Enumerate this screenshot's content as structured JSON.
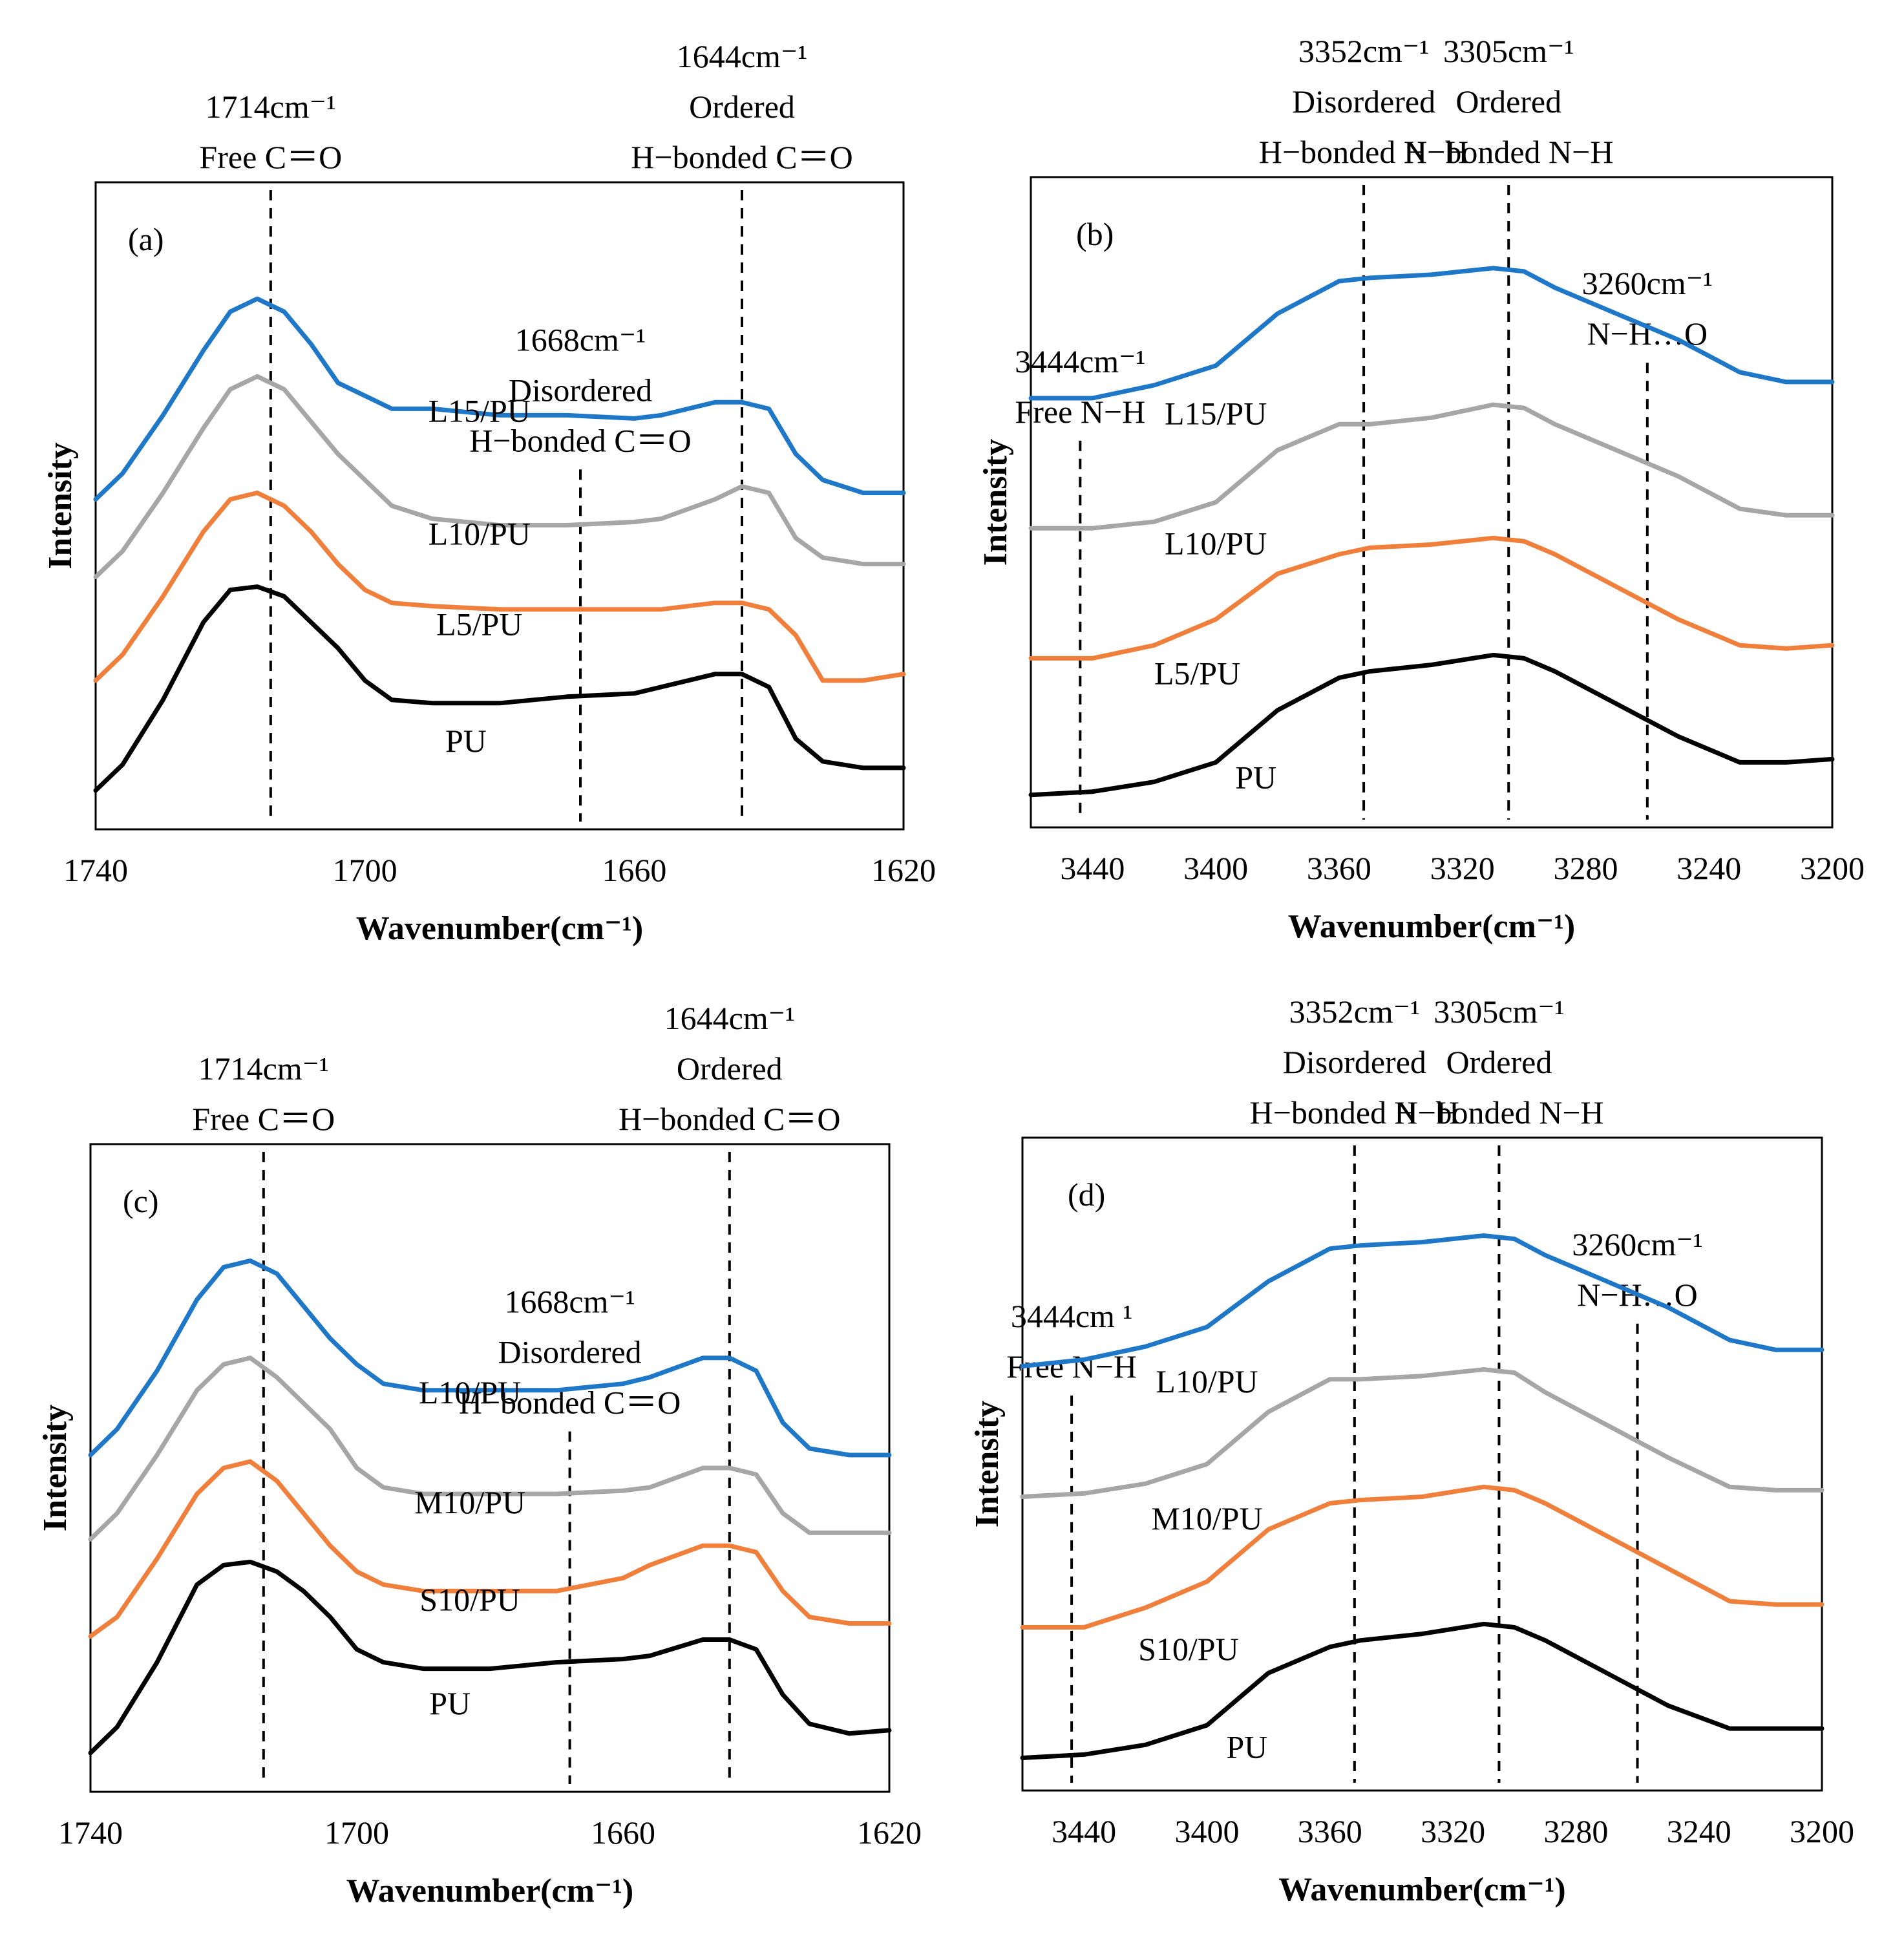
{
  "chart_data": [
    {
      "type": "line",
      "panel_label": "(a)",
      "xlabel": "Wavenumber(cm⁻¹)",
      "ylabel": "Intensity",
      "xlim": [
        1740,
        1620
      ],
      "ylim": [
        0,
        10
      ],
      "xticks": [
        "1740",
        "1700",
        "1660",
        "1620"
      ],
      "annotations": [
        {
          "x": 1714,
          "lines": [
            "1714cm⁻¹",
            "Free C＝O"
          ],
          "top": 9.7
        },
        {
          "x": 1644,
          "lines": [
            "1644cm⁻¹",
            "Ordered",
            "H−bonded C＝O"
          ],
          "top": 9.7
        },
        {
          "x": 1668,
          "lines": [
            "1668cm⁻¹",
            "Disordered",
            "H−bonded C＝O"
          ],
          "top": 7.4
        }
      ],
      "series": [
        {
          "name": "L15/PU",
          "color": "#1f77c8",
          "label_x": 1683,
          "label_y": 6.3,
          "x": [
            1740,
            1736,
            1730,
            1724,
            1720,
            1716,
            1712,
            1708,
            1704,
            1700,
            1696,
            1690,
            1680,
            1670,
            1660,
            1656,
            1648,
            1644,
            1640,
            1636,
            1632,
            1626,
            1620
          ],
          "y": [
            5.1,
            5.5,
            6.4,
            7.4,
            8.0,
            8.2,
            8.0,
            7.5,
            6.9,
            6.7,
            6.5,
            6.5,
            6.4,
            6.4,
            6.35,
            6.4,
            6.6,
            6.6,
            6.5,
            5.8,
            5.4,
            5.2,
            5.2
          ]
        },
        {
          "name": "L10/PU",
          "color": "#a6a6a6",
          "label_x": 1683,
          "label_y": 4.4,
          "x": [
            1740,
            1736,
            1730,
            1724,
            1720,
            1716,
            1712,
            1708,
            1704,
            1700,
            1696,
            1690,
            1680,
            1670,
            1660,
            1656,
            1648,
            1644,
            1640,
            1636,
            1632,
            1626,
            1620
          ],
          "y": [
            3.9,
            4.3,
            5.2,
            6.2,
            6.8,
            7.0,
            6.8,
            6.3,
            5.8,
            5.4,
            5.0,
            4.8,
            4.7,
            4.7,
            4.75,
            4.8,
            5.1,
            5.3,
            5.2,
            4.5,
            4.2,
            4.1,
            4.1
          ]
        },
        {
          "name": "L5/PU",
          "color": "#f07f3c",
          "label_x": 1683,
          "label_y": 3.0,
          "x": [
            1740,
            1736,
            1730,
            1724,
            1720,
            1716,
            1712,
            1708,
            1704,
            1700,
            1696,
            1690,
            1680,
            1670,
            1660,
            1656,
            1648,
            1644,
            1640,
            1636,
            1632,
            1626,
            1620
          ],
          "y": [
            2.3,
            2.7,
            3.6,
            4.6,
            5.1,
            5.2,
            5.0,
            4.6,
            4.1,
            3.7,
            3.5,
            3.45,
            3.4,
            3.4,
            3.4,
            3.4,
            3.5,
            3.5,
            3.4,
            3.0,
            2.3,
            2.3,
            2.4
          ]
        },
        {
          "name": "PU",
          "color": "#000000",
          "label_x": 1685,
          "label_y": 1.2,
          "x": [
            1740,
            1736,
            1730,
            1724,
            1720,
            1716,
            1712,
            1708,
            1704,
            1700,
            1696,
            1690,
            1680,
            1670,
            1660,
            1656,
            1648,
            1644,
            1640,
            1636,
            1632,
            1626,
            1620
          ],
          "y": [
            0.6,
            1.0,
            2.0,
            3.2,
            3.7,
            3.75,
            3.6,
            3.2,
            2.8,
            2.3,
            2.0,
            1.95,
            1.95,
            2.05,
            2.1,
            2.2,
            2.4,
            2.4,
            2.2,
            1.4,
            1.05,
            0.95,
            0.95
          ]
        }
      ]
    },
    {
      "type": "line",
      "panel_label": "(b)",
      "xlabel": "Wavenumber(cm⁻¹)",
      "ylabel": "Intensity",
      "xlim": [
        3460,
        3200
      ],
      "ylim": [
        0,
        10
      ],
      "xticks": [
        "3440",
        "3400",
        "3360",
        "3320",
        "3280",
        "3240",
        "3200"
      ],
      "annotations": [
        {
          "x": 3352,
          "lines": [
            "3352cm⁻¹",
            "Disordered",
            "H−bonded N−H"
          ],
          "top": 9.7
        },
        {
          "x": 3305,
          "lines": [
            "3305cm⁻¹",
            "Ordered",
            "H−bonded N−H"
          ],
          "top": 9.7
        },
        {
          "x": 3260,
          "lines": [
            "3260cm⁻¹",
            "N−H…O"
          ],
          "top": 8.2
        },
        {
          "x": 3444,
          "lines": [
            "3444cm⁻¹",
            "Free N−H"
          ],
          "top": 7.0
        }
      ],
      "series": [
        {
          "name": "L15/PU",
          "color": "#1f77c8",
          "label_x": 3400,
          "label_y": 6.2,
          "x": [
            3460,
            3440,
            3420,
            3400,
            3380,
            3360,
            3350,
            3330,
            3310,
            3300,
            3290,
            3270,
            3250,
            3230,
            3215,
            3200
          ],
          "y": [
            6.6,
            6.6,
            6.8,
            7.1,
            7.9,
            8.4,
            8.45,
            8.5,
            8.6,
            8.55,
            8.3,
            7.9,
            7.5,
            7.0,
            6.85,
            6.85
          ]
        },
        {
          "name": "L10/PU",
          "color": "#a6a6a6",
          "label_x": 3400,
          "label_y": 4.2,
          "x": [
            3460,
            3440,
            3420,
            3400,
            3380,
            3360,
            3350,
            3330,
            3310,
            3300,
            3290,
            3270,
            3250,
            3230,
            3215,
            3200
          ],
          "y": [
            4.6,
            4.6,
            4.7,
            5.0,
            5.8,
            6.2,
            6.2,
            6.3,
            6.5,
            6.45,
            6.2,
            5.8,
            5.4,
            4.9,
            4.8,
            4.8
          ]
        },
        {
          "name": "L5/PU",
          "color": "#f07f3c",
          "label_x": 3406,
          "label_y": 2.2,
          "x": [
            3460,
            3440,
            3420,
            3400,
            3380,
            3360,
            3350,
            3330,
            3310,
            3300,
            3290,
            3270,
            3250,
            3230,
            3215,
            3200
          ],
          "y": [
            2.6,
            2.6,
            2.8,
            3.2,
            3.9,
            4.2,
            4.3,
            4.35,
            4.45,
            4.4,
            4.2,
            3.7,
            3.2,
            2.8,
            2.75,
            2.8
          ]
        },
        {
          "name": "PU",
          "color": "#000000",
          "label_x": 3387,
          "label_y": 0.6,
          "x": [
            3460,
            3440,
            3420,
            3400,
            3380,
            3360,
            3350,
            3330,
            3310,
            3300,
            3290,
            3270,
            3250,
            3230,
            3215,
            3200
          ],
          "y": [
            0.5,
            0.55,
            0.7,
            1.0,
            1.8,
            2.3,
            2.4,
            2.5,
            2.65,
            2.6,
            2.4,
            1.9,
            1.4,
            1.0,
            1.0,
            1.05
          ]
        }
      ]
    },
    {
      "type": "line",
      "panel_label": "(c)",
      "xlabel": "Wavenumber(cm⁻¹)",
      "ylabel": "Intensity",
      "xlim": [
        1740,
        1620
      ],
      "ylim": [
        0,
        10
      ],
      "xticks": [
        "1740",
        "1700",
        "1660",
        "1620"
      ],
      "annotations": [
        {
          "x": 1714,
          "lines": [
            "1714cm⁻¹",
            "Free C＝O"
          ],
          "top": 9.7
        },
        {
          "x": 1644,
          "lines": [
            "1644cm⁻¹",
            "Ordered",
            "H−bonded C＝O"
          ],
          "top": 9.7
        },
        {
          "x": 1668,
          "lines": [
            "1668cm⁻¹",
            "Disordered",
            "H−bonded C＝O"
          ],
          "top": 7.4
        }
      ],
      "series": [
        {
          "name": "L10/PU",
          "color": "#1f77c8",
          "label_x": 1683,
          "label_y": 6.0,
          "x": [
            1740,
            1736,
            1730,
            1724,
            1720,
            1716,
            1712,
            1708,
            1704,
            1700,
            1696,
            1690,
            1680,
            1670,
            1660,
            1656,
            1648,
            1644,
            1640,
            1636,
            1632,
            1626,
            1620
          ],
          "y": [
            5.2,
            5.6,
            6.5,
            7.6,
            8.1,
            8.2,
            8.0,
            7.5,
            7.0,
            6.6,
            6.3,
            6.2,
            6.2,
            6.2,
            6.3,
            6.4,
            6.7,
            6.7,
            6.5,
            5.7,
            5.3,
            5.2,
            5.2
          ]
        },
        {
          "name": "M10/PU",
          "color": "#a6a6a6",
          "label_x": 1683,
          "label_y": 4.3,
          "x": [
            1740,
            1736,
            1730,
            1724,
            1720,
            1716,
            1712,
            1708,
            1704,
            1700,
            1696,
            1690,
            1680,
            1670,
            1660,
            1656,
            1648,
            1644,
            1640,
            1636,
            1632,
            1626,
            1620
          ],
          "y": [
            3.9,
            4.3,
            5.2,
            6.2,
            6.6,
            6.7,
            6.4,
            6.0,
            5.6,
            5.0,
            4.7,
            4.6,
            4.6,
            4.6,
            4.65,
            4.7,
            5.0,
            5.0,
            4.9,
            4.3,
            4.0,
            4.0,
            4.0
          ]
        },
        {
          "name": "S10/PU",
          "color": "#f07f3c",
          "label_x": 1683,
          "label_y": 2.8,
          "x": [
            1740,
            1736,
            1730,
            1724,
            1720,
            1716,
            1712,
            1708,
            1704,
            1700,
            1696,
            1690,
            1680,
            1670,
            1660,
            1656,
            1648,
            1644,
            1640,
            1636,
            1632,
            1626,
            1620
          ],
          "y": [
            2.4,
            2.7,
            3.6,
            4.6,
            5.0,
            5.1,
            4.8,
            4.3,
            3.8,
            3.4,
            3.2,
            3.1,
            3.1,
            3.1,
            3.3,
            3.5,
            3.8,
            3.8,
            3.7,
            3.1,
            2.7,
            2.6,
            2.6
          ]
        },
        {
          "name": "PU",
          "color": "#000000",
          "label_x": 1686,
          "label_y": 1.2,
          "x": [
            1740,
            1736,
            1730,
            1724,
            1720,
            1716,
            1712,
            1708,
            1704,
            1700,
            1696,
            1690,
            1680,
            1670,
            1660,
            1656,
            1648,
            1644,
            1640,
            1636,
            1632,
            1626,
            1620
          ],
          "y": [
            0.6,
            1.0,
            2.0,
            3.2,
            3.5,
            3.55,
            3.4,
            3.1,
            2.7,
            2.2,
            2.0,
            1.9,
            1.9,
            2.0,
            2.05,
            2.1,
            2.35,
            2.35,
            2.2,
            1.5,
            1.05,
            0.9,
            0.95
          ]
        }
      ]
    },
    {
      "type": "line",
      "panel_label": "(d)",
      "xlabel": "Wavenumber(cm⁻¹)",
      "ylabel": "Intensity",
      "xlim": [
        3460,
        3200
      ],
      "ylim": [
        0,
        10
      ],
      "xticks": [
        "3440",
        "3400",
        "3360",
        "3320",
        "3280",
        "3240",
        "3200"
      ],
      "annotations": [
        {
          "x": 3352,
          "lines": [
            "3352cm⁻¹",
            "Disordered",
            "H−bonded N−H"
          ],
          "top": 9.7
        },
        {
          "x": 3305,
          "lines": [
            "3305cm⁻¹",
            "Ordered",
            "H−bonded N−H"
          ],
          "top": 9.7
        },
        {
          "x": 3260,
          "lines": [
            "3260cm⁻¹",
            "N−H…O"
          ],
          "top": 8.2
        },
        {
          "x": 3444,
          "lines": [
            "3444cm ¹",
            "Free N−H"
          ],
          "top": 7.1
        }
      ],
      "series": [
        {
          "name": "L10/PU",
          "color": "#1f77c8",
          "label_x": 3400,
          "label_y": 6.1,
          "x": [
            3460,
            3440,
            3420,
            3400,
            3380,
            3360,
            3350,
            3330,
            3310,
            3300,
            3290,
            3270,
            3250,
            3230,
            3215,
            3200
          ],
          "y": [
            6.5,
            6.6,
            6.8,
            7.1,
            7.8,
            8.3,
            8.35,
            8.4,
            8.5,
            8.45,
            8.2,
            7.8,
            7.4,
            6.9,
            6.75,
            6.75
          ]
        },
        {
          "name": "M10/PU",
          "color": "#a6a6a6",
          "label_x": 3400,
          "label_y": 4.0,
          "x": [
            3460,
            3440,
            3420,
            3400,
            3380,
            3360,
            3350,
            3330,
            3310,
            3300,
            3290,
            3270,
            3250,
            3230,
            3215,
            3200
          ],
          "y": [
            4.5,
            4.55,
            4.7,
            5.0,
            5.8,
            6.3,
            6.3,
            6.35,
            6.45,
            6.4,
            6.1,
            5.6,
            5.1,
            4.65,
            4.6,
            4.6
          ]
        },
        {
          "name": "S10/PU",
          "color": "#f07f3c",
          "label_x": 3406,
          "label_y": 2.0,
          "x": [
            3460,
            3440,
            3420,
            3400,
            3380,
            3360,
            3350,
            3330,
            3310,
            3300,
            3290,
            3270,
            3250,
            3230,
            3215,
            3200
          ],
          "y": [
            2.5,
            2.5,
            2.8,
            3.2,
            4.0,
            4.4,
            4.45,
            4.5,
            4.65,
            4.6,
            4.4,
            3.9,
            3.4,
            2.9,
            2.85,
            2.85
          ]
        },
        {
          "name": "PU",
          "color": "#000000",
          "label_x": 3387,
          "label_y": 0.5,
          "x": [
            3460,
            3440,
            3420,
            3400,
            3380,
            3360,
            3350,
            3330,
            3310,
            3300,
            3290,
            3270,
            3250,
            3230,
            3215,
            3200
          ],
          "y": [
            0.5,
            0.55,
            0.7,
            1.0,
            1.8,
            2.2,
            2.3,
            2.4,
            2.55,
            2.5,
            2.3,
            1.8,
            1.3,
            0.95,
            0.95,
            0.95
          ]
        }
      ]
    }
  ]
}
